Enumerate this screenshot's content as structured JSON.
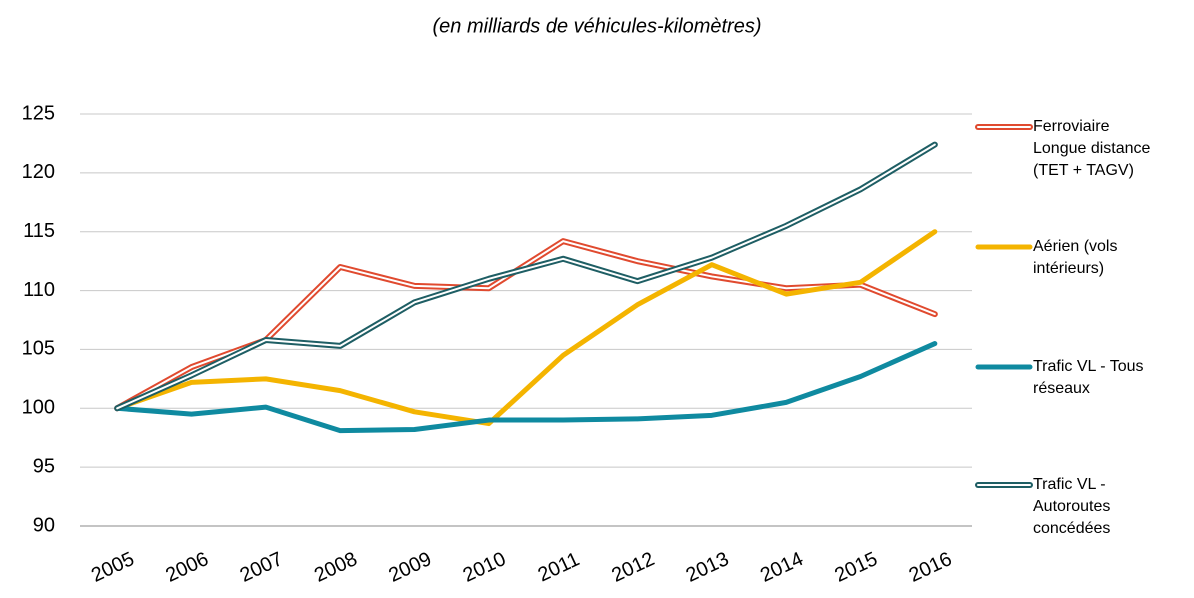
{
  "chart_data": {
    "type": "line",
    "title": "(en milliards de véhicules-kilomètres)",
    "categories": [
      "2005",
      "2006",
      "2007",
      "2008",
      "2009",
      "2010",
      "2011",
      "2012",
      "2013",
      "2014",
      "2015",
      "2016"
    ],
    "series": [
      {
        "name": "Ferroviaire Longue distance (TET + TAGV)",
        "color": "#e04a2f",
        "style": "double",
        "values": [
          100,
          103.5,
          105.8,
          112,
          110.4,
          110.2,
          114.2,
          112.5,
          111.2,
          110.2,
          110.5,
          108
        ]
      },
      {
        "name": "Aérien (vols intérieurs)",
        "color": "#f4b400",
        "style": "solid",
        "values": [
          100,
          102.2,
          102.5,
          101.5,
          99.7,
          98.7,
          104.5,
          108.8,
          112.2,
          109.7,
          110.7,
          115
        ]
      },
      {
        "name": "Trafic VL - Tous réseaux",
        "color": "#0f8aa0",
        "style": "solid",
        "values": [
          100,
          99.5,
          100.1,
          98.1,
          98.2,
          99,
          99,
          99.1,
          99.4,
          100.5,
          102.7,
          105.5
        ]
      },
      {
        "name": "Trafic VL - Autoroutes concédées",
        "color": "#1e5e64",
        "style": "double",
        "values": [
          100,
          102.8,
          105.8,
          105.3,
          109,
          111,
          112.7,
          110.8,
          112.8,
          115.5,
          118.6,
          122.4
        ]
      }
    ],
    "ylim": [
      90,
      125
    ],
    "yticks": [
      90,
      95,
      100,
      105,
      110,
      115,
      120,
      125
    ],
    "grid": true,
    "legend": "right"
  }
}
